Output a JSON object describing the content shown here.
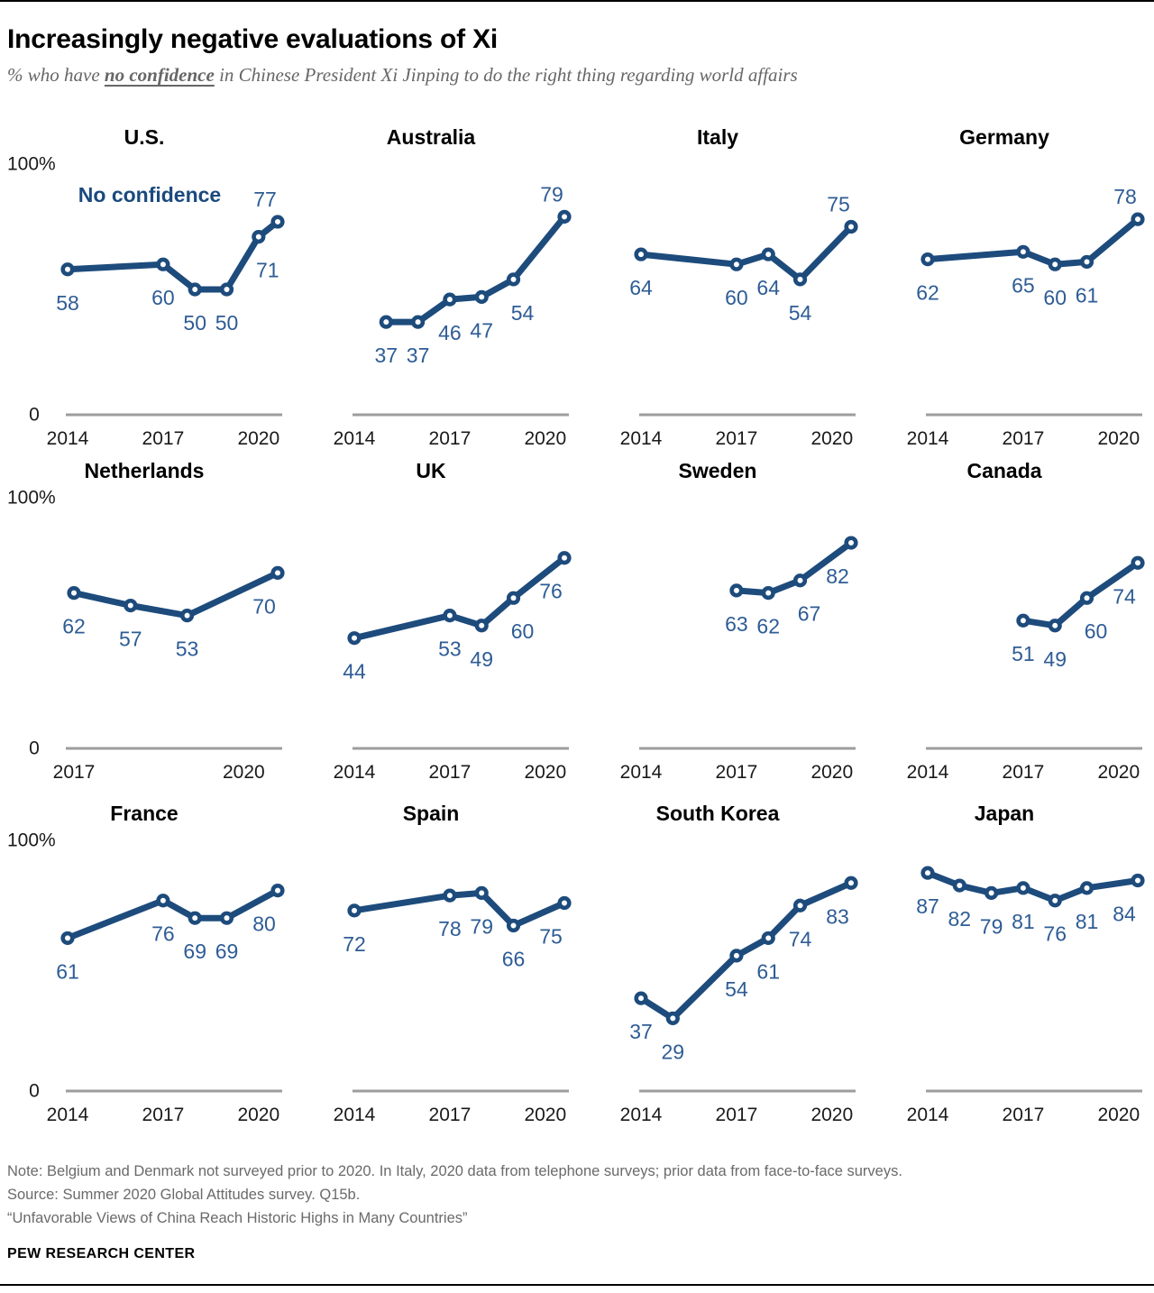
{
  "header": {
    "title": "Increasingly negative evaluations of Xi",
    "subtitle_prefix": "% who have ",
    "subtitle_emphasis": "no confidence",
    "subtitle_suffix": " in Chinese President Xi Jinping to do the right thing regarding world affairs"
  },
  "colors": {
    "line_navy": "#1d4b7c",
    "label_blue": "#2e5c95",
    "legend_navy": "#1a4a7d",
    "axis_gray": "#9d9d9d",
    "tick_black": "#1a1a1a"
  },
  "chart_data": [
    {
      "type": "line",
      "country": "U.S.",
      "legend": "No confidence",
      "y_top_label": "100%",
      "y_zero_label": "0",
      "x_domain": [
        2014,
        2020.6
      ],
      "x_ticks": [
        2014,
        2017,
        2020
      ],
      "ylim": [
        0,
        100
      ],
      "grid": false,
      "points": [
        {
          "year": 2014,
          "value": 58,
          "lp": "b"
        },
        {
          "year": 2017,
          "value": 60,
          "lp": "b"
        },
        {
          "year": 2018,
          "value": 50,
          "lp": "b"
        },
        {
          "year": 2019,
          "value": 50,
          "lp": "b"
        },
        {
          "year": 2020,
          "value": 71,
          "lp": "br"
        },
        {
          "year": 2020.6,
          "value": 77,
          "lp": "al"
        }
      ]
    },
    {
      "type": "line",
      "country": "Australia",
      "x_domain": [
        2014,
        2020.6
      ],
      "x_ticks": [
        2014,
        2017,
        2020
      ],
      "ylim": [
        0,
        100
      ],
      "grid": false,
      "points": [
        {
          "year": 2015,
          "value": 37,
          "lp": "b"
        },
        {
          "year": 2016,
          "value": 37,
          "lp": "b"
        },
        {
          "year": 2017,
          "value": 46,
          "lp": "b"
        },
        {
          "year": 2018,
          "value": 47,
          "lp": "b"
        },
        {
          "year": 2019,
          "value": 54,
          "lp": "br"
        },
        {
          "year": 2020.6,
          "value": 79,
          "lp": "al"
        }
      ]
    },
    {
      "type": "line",
      "country": "Italy",
      "x_domain": [
        2014,
        2020.6
      ],
      "x_ticks": [
        2014,
        2017,
        2020
      ],
      "ylim": [
        0,
        100
      ],
      "grid": false,
      "points": [
        {
          "year": 2014,
          "value": 64,
          "lp": "b"
        },
        {
          "year": 2017,
          "value": 60,
          "lp": "b"
        },
        {
          "year": 2018,
          "value": 64,
          "lp": "b"
        },
        {
          "year": 2019,
          "value": 54,
          "lp": "b"
        },
        {
          "year": 2020.6,
          "value": 75,
          "lp": "al"
        }
      ]
    },
    {
      "type": "line",
      "country": "Germany",
      "x_domain": [
        2014,
        2020.6
      ],
      "x_ticks": [
        2014,
        2017,
        2020
      ],
      "ylim": [
        0,
        100
      ],
      "grid": false,
      "points": [
        {
          "year": 2014,
          "value": 62,
          "lp": "b"
        },
        {
          "year": 2017,
          "value": 65,
          "lp": "b"
        },
        {
          "year": 2018,
          "value": 60,
          "lp": "b"
        },
        {
          "year": 2019,
          "value": 61,
          "lp": "b"
        },
        {
          "year": 2020.6,
          "value": 78,
          "lp": "al"
        }
      ]
    },
    {
      "type": "line",
      "country": "Netherlands",
      "y_top_label": "100%",
      "y_zero_label": "0",
      "x_domain": [
        2017,
        2020.6
      ],
      "x_ticks": [
        2017,
        2020
      ],
      "ylim": [
        0,
        100
      ],
      "grid": false,
      "points": [
        {
          "year": 2017,
          "value": 62,
          "lp": "b"
        },
        {
          "year": 2018,
          "value": 57,
          "lp": "b"
        },
        {
          "year": 2019,
          "value": 53,
          "lp": "b"
        },
        {
          "year": 2020.6,
          "value": 70,
          "lp": "bl"
        }
      ]
    },
    {
      "type": "line",
      "country": "UK",
      "x_domain": [
        2014,
        2020.6
      ],
      "x_ticks": [
        2014,
        2017,
        2020
      ],
      "ylim": [
        0,
        100
      ],
      "grid": false,
      "points": [
        {
          "year": 2014,
          "value": 44,
          "lp": "b"
        },
        {
          "year": 2017,
          "value": 53,
          "lp": "b"
        },
        {
          "year": 2018,
          "value": 49,
          "lp": "b"
        },
        {
          "year": 2019,
          "value": 60,
          "lp": "br"
        },
        {
          "year": 2020.6,
          "value": 76,
          "lp": "bl"
        }
      ]
    },
    {
      "type": "line",
      "country": "Sweden",
      "x_domain": [
        2014,
        2020.6
      ],
      "x_ticks": [
        2014,
        2017,
        2020
      ],
      "ylim": [
        0,
        100
      ],
      "grid": false,
      "points": [
        {
          "year": 2017,
          "value": 63,
          "lp": "b"
        },
        {
          "year": 2018,
          "value": 62,
          "lp": "b"
        },
        {
          "year": 2019,
          "value": 67,
          "lp": "br"
        },
        {
          "year": 2020.6,
          "value": 82,
          "lp": "bl"
        }
      ]
    },
    {
      "type": "line",
      "country": "Canada",
      "x_domain": [
        2014,
        2020.6
      ],
      "x_ticks": [
        2014,
        2017,
        2020
      ],
      "ylim": [
        0,
        100
      ],
      "grid": false,
      "points": [
        {
          "year": 2017,
          "value": 51,
          "lp": "b"
        },
        {
          "year": 2018,
          "value": 49,
          "lp": "b"
        },
        {
          "year": 2019,
          "value": 60,
          "lp": "br"
        },
        {
          "year": 2020.6,
          "value": 74,
          "lp": "bl"
        }
      ]
    },
    {
      "type": "line",
      "country": "France",
      "y_top_label": "100%",
      "y_zero_label": "0",
      "x_domain": [
        2014,
        2020.6
      ],
      "x_ticks": [
        2014,
        2017,
        2020
      ],
      "ylim": [
        0,
        100
      ],
      "grid": false,
      "points": [
        {
          "year": 2014,
          "value": 61,
          "lp": "b"
        },
        {
          "year": 2017,
          "value": 76,
          "lp": "b"
        },
        {
          "year": 2018,
          "value": 69,
          "lp": "b"
        },
        {
          "year": 2019,
          "value": 69,
          "lp": "b"
        },
        {
          "year": 2020.6,
          "value": 80,
          "lp": "bl"
        }
      ]
    },
    {
      "type": "line",
      "country": "Spain",
      "x_domain": [
        2014,
        2020.6
      ],
      "x_ticks": [
        2014,
        2017,
        2020
      ],
      "ylim": [
        0,
        100
      ],
      "grid": false,
      "points": [
        {
          "year": 2014,
          "value": 72,
          "lp": "b"
        },
        {
          "year": 2017,
          "value": 78,
          "lp": "b"
        },
        {
          "year": 2018,
          "value": 79,
          "lp": "b"
        },
        {
          "year": 2019,
          "value": 66,
          "lp": "b"
        },
        {
          "year": 2020.6,
          "value": 75,
          "lp": "bl"
        }
      ]
    },
    {
      "type": "line",
      "country": "South Korea",
      "x_domain": [
        2014,
        2020.6
      ],
      "x_ticks": [
        2014,
        2017,
        2020
      ],
      "ylim": [
        0,
        100
      ],
      "grid": false,
      "points": [
        {
          "year": 2014,
          "value": 37,
          "lp": "b"
        },
        {
          "year": 2015,
          "value": 29,
          "lp": "b"
        },
        {
          "year": 2017,
          "value": 54,
          "lp": "b"
        },
        {
          "year": 2018,
          "value": 61,
          "lp": "b"
        },
        {
          "year": 2019,
          "value": 74,
          "lp": "b"
        },
        {
          "year": 2020.6,
          "value": 83,
          "lp": "bl"
        }
      ]
    },
    {
      "type": "line",
      "country": "Japan",
      "x_domain": [
        2014,
        2020.6
      ],
      "x_ticks": [
        2014,
        2017,
        2020
      ],
      "ylim": [
        0,
        100
      ],
      "grid": false,
      "points": [
        {
          "year": 2014,
          "value": 87,
          "lp": "b"
        },
        {
          "year": 2015,
          "value": 82,
          "lp": "b"
        },
        {
          "year": 2016,
          "value": 79,
          "lp": "b"
        },
        {
          "year": 2017,
          "value": 81,
          "lp": "b"
        },
        {
          "year": 2018,
          "value": 76,
          "lp": "b"
        },
        {
          "year": 2019,
          "value": 81,
          "lp": "b"
        },
        {
          "year": 2020.6,
          "value": 84,
          "lp": "bl"
        }
      ]
    }
  ],
  "footer": {
    "note": "Note: Belgium and Denmark not surveyed prior to 2020. In Italy, 2020 data from telephone surveys; prior data from face-to-face surveys.",
    "source": "Source: Summer 2020 Global Attitudes survey. Q15b.",
    "report": "“Unfavorable Views of China Reach Historic Highs in Many Countries”",
    "brand": "PEW RESEARCH CENTER"
  }
}
